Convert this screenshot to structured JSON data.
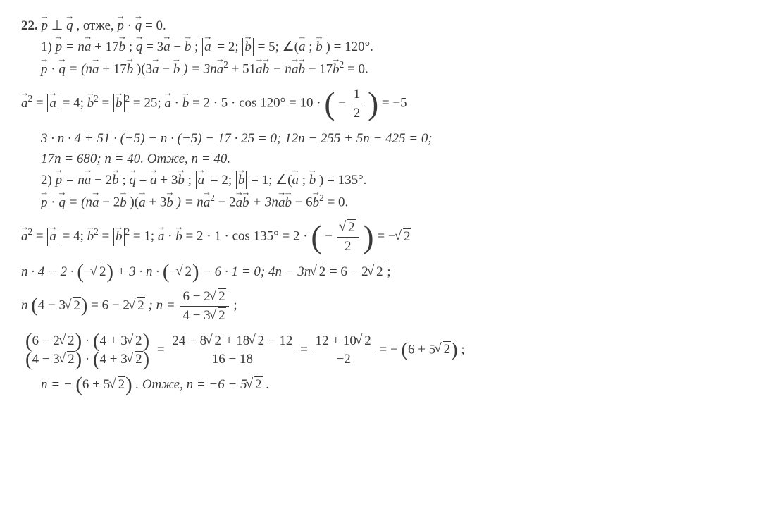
{
  "colors": {
    "text": "#3a3a3a",
    "background": "#ffffff"
  },
  "font": {
    "family": "Times New Roman",
    "baseSize": 19
  },
  "problemNumber": "22.",
  "line0": {
    "t1": "p",
    "t2": "⊥",
    "t3": "q",
    "t4": ",  отже,  ",
    "t5": "p",
    "t6": "·",
    "t7": "q",
    "t8": "= 0."
  },
  "line1": {
    "n": "1)  ",
    "p": "p",
    "eq1": " = n",
    "a1": "a",
    "pl1": " + 17",
    "b1": "b",
    "semi1": ";   ",
    "q": "q",
    "eq2": " = 3",
    "a2": "a",
    "min": " − ",
    "b2": "b",
    "semi2": ";   ",
    "ma": "a",
    "mav": " = 2;   ",
    "mb": "b",
    "mbv": " = 5;   ",
    "ang": "∠(",
    "aa": "a",
    "sep": "; ",
    "bb": "b",
    "angv": ") = 120°."
  },
  "line2": {
    "p": "p",
    "dot": " · ",
    "q": "q",
    "eq": " = (n",
    "a1": "a",
    "pl1": " + 17",
    "b1": "b",
    "lp": ")(3",
    "a2": "a",
    "min": " − ",
    "b2": "b",
    "rp": ") = 3n",
    "a3": "a",
    "sq1": "2",
    "pl2": " + 51",
    "a4": "a",
    "b3": "b",
    "min2": " − n",
    "a5": "a",
    "b4": "b",
    "min3": " − 17",
    "b5": "b",
    "sq2": "2",
    "end": " = 0."
  },
  "line3": {
    "a1": "a",
    "sq1": "2",
    "eq1": " = ",
    "ma": "a",
    "v1": " = 4;   ",
    "b1": "b",
    "sq2": "2",
    "eq2": " = ",
    "mb": "b",
    "sq3": "2",
    "v2": " = 25;   ",
    "a2": "a",
    "dot": " · ",
    "b2": "b",
    "eq3": " = 2 · 5 · cos 120° = 10 · ",
    "neg": "−",
    "fn": "1",
    "fd": "2",
    "end": " = −5"
  },
  "line4": {
    "t": "3 · n · 4 + 51 · (−5) − n · (−5) − 17 · 25 = 0;  12n − 255 + 5n − 425 = 0;"
  },
  "line5": {
    "t": "17n = 680;  n = 40. Отже,  n = 40."
  },
  "line6": {
    "n": "2)  ",
    "p": "p",
    "eq1": " = n",
    "a1": "a",
    "min1": " − 2",
    "b1": "b",
    "semi1": ";   ",
    "q": "q",
    "eq2": " = ",
    "a2": "a",
    "pl": " + 3",
    "b2": "b",
    "semi2": ";   ",
    "ma": "a",
    "mav": " = 2;   ",
    "mb": "b",
    "mbv": " = 1;   ",
    "ang": "∠(",
    "aa": "a",
    "sep": "; ",
    "bb": "b",
    "angv": ") = 135°."
  },
  "line7": {
    "p": "p",
    "dot": " · ",
    "q": "q",
    "eq": " = (n",
    "a1": "a",
    "min1": " − 2",
    "b1": "b",
    "lp": ")(",
    "a2": "a",
    "pl": " + 3",
    "b2": "b",
    "rp": ") = n",
    "a3": "a",
    "sq1": "2",
    "min2": " − 2",
    "a4": "a",
    "b3": "b",
    "pl2": " + 3n",
    "a5": "a",
    "b4": "b",
    "min3": " − 6",
    "b5": "b",
    "sq2": "2",
    "end": " = 0."
  },
  "line8": {
    "a1": "a",
    "sq1": "2",
    "eq1": " = ",
    "ma": "a",
    "v1": " = 4;   ",
    "b1": "b",
    "sq2": "2",
    "eq2": " = ",
    "mb": "b",
    "sq3": "2",
    "v2": " = 1;   ",
    "a2": "a",
    "dot": " · ",
    "b2": "b",
    "eq3": " = 2 · 1 · cos 135° = 2 · ",
    "neg": "−",
    "fn": "2",
    "fd": "2",
    "end": " = −",
    "r2": "2"
  },
  "line9": {
    "t1": "n · 4 − 2 · ",
    "neg1": "−",
    "r1": "2",
    "t2": " + 3 · n · ",
    "neg2": "−",
    "r2": "2",
    "t3": " − 6 · 1 = 0;   4n − 3n",
    "r3": "2",
    "t4": " = 6 − 2",
    "r4": "2",
    "semi": ";"
  },
  "line10": {
    "t1": "n",
    "t2": "4 − 3",
    "r1": "2",
    "t3": " = 6 − 2",
    "r2": "2",
    "t4": ";   n = ",
    "fn1": "6 − 2",
    "fr1": "2",
    "fd1": "4 − 3",
    "fr2": "2",
    "semi": ";"
  },
  "line11": {
    "nl1": "6 − 2",
    "nr1": "2",
    "nm": " · ",
    "nl2": "4 + 3",
    "nr2": "2",
    "dl1": "4 − 3",
    "dr1": "2",
    "dm": " · ",
    "dl2": "4 + 3",
    "dr2": "2",
    "eq1": " = ",
    "m1": "24 − 8",
    "mr1": "2",
    "m2": " + 18",
    "mr2": "2",
    "m3": " − 12",
    "md": "16 − 18",
    "eq2": " = ",
    "r1": "12 + 10",
    "rr1": "2",
    "rd": "−2",
    "eq3": " = −",
    "f1": "6 + 5",
    "fr1": "2",
    "semi": ";"
  },
  "line12": {
    "t1": "n = −",
    "f1": "6 + 5",
    "r1": "2",
    "t2": ".  Отже,  n = −6 − 5",
    "r2": "2",
    "t3": "."
  }
}
